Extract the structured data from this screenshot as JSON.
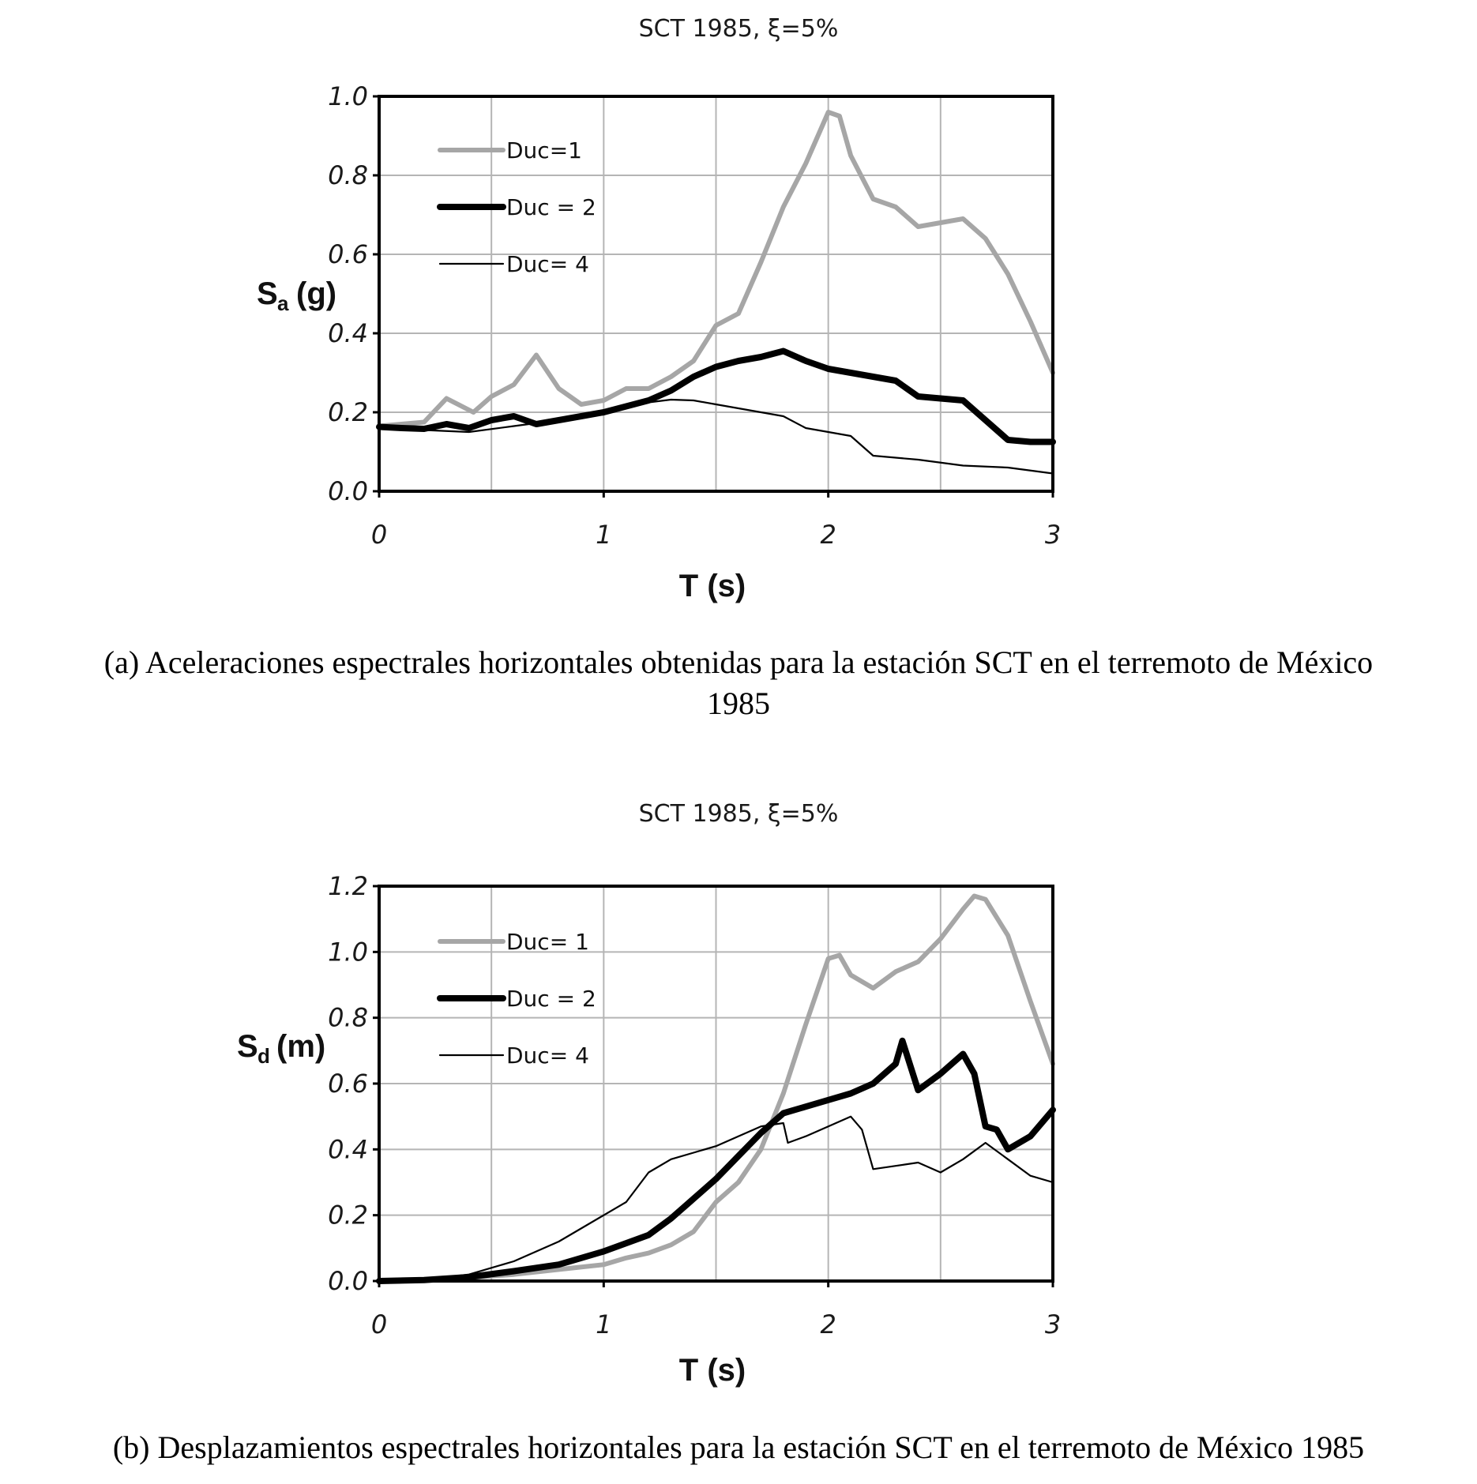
{
  "chart_data": [
    {
      "type": "line",
      "title": "SCT 1985, ξ=5%",
      "ylabel_main": "S",
      "ylabel_sub": "a",
      "ylabel_unit": "(g)",
      "xlabel": "T (s)",
      "xlim": [
        0,
        3
      ],
      "ylim": [
        0,
        1.0
      ],
      "xticks": [
        "0",
        "1",
        "2",
        "3"
      ],
      "yticks": [
        "0.0",
        "0.2",
        "0.4",
        "0.6",
        "0.8",
        "1.0"
      ],
      "grid": true,
      "legend_position": "top-left",
      "caption_line1": "(a) Aceleraciones espectrales horizontales obtenidas para la estación SCT en el terremoto de México",
      "caption_line2": "1985",
      "series": [
        {
          "name": "Duc=1",
          "color": "#a6a6a6",
          "style": "thick",
          "points": [
            [
              0,
              0.165
            ],
            [
              0.1,
              0.17
            ],
            [
              0.2,
              0.175
            ],
            [
              0.3,
              0.235
            ],
            [
              0.42,
              0.2
            ],
            [
              0.5,
              0.24
            ],
            [
              0.6,
              0.27
            ],
            [
              0.7,
              0.345
            ],
            [
              0.8,
              0.26
            ],
            [
              0.9,
              0.22
            ],
            [
              1.0,
              0.23
            ],
            [
              1.1,
              0.26
            ],
            [
              1.2,
              0.26
            ],
            [
              1.3,
              0.29
            ],
            [
              1.4,
              0.33
            ],
            [
              1.5,
              0.42
            ],
            [
              1.6,
              0.45
            ],
            [
              1.7,
              0.58
            ],
            [
              1.8,
              0.72
            ],
            [
              1.9,
              0.83
            ],
            [
              2.0,
              0.96
            ],
            [
              2.05,
              0.95
            ],
            [
              2.1,
              0.85
            ],
            [
              2.2,
              0.74
            ],
            [
              2.3,
              0.72
            ],
            [
              2.4,
              0.67
            ],
            [
              2.5,
              0.68
            ],
            [
              2.6,
              0.69
            ],
            [
              2.7,
              0.64
            ],
            [
              2.8,
              0.55
            ],
            [
              2.9,
              0.43
            ],
            [
              3.0,
              0.3
            ]
          ]
        },
        {
          "name": "Duc = 2",
          "color": "#000000",
          "style": "bold",
          "points": [
            [
              0,
              0.163
            ],
            [
              0.1,
              0.16
            ],
            [
              0.2,
              0.158
            ],
            [
              0.3,
              0.17
            ],
            [
              0.4,
              0.16
            ],
            [
              0.5,
              0.18
            ],
            [
              0.6,
              0.19
            ],
            [
              0.7,
              0.17
            ],
            [
              0.8,
              0.18
            ],
            [
              0.9,
              0.19
            ],
            [
              1.0,
              0.2
            ],
            [
              1.1,
              0.215
            ],
            [
              1.2,
              0.23
            ],
            [
              1.3,
              0.255
            ],
            [
              1.4,
              0.29
            ],
            [
              1.5,
              0.315
            ],
            [
              1.6,
              0.33
            ],
            [
              1.7,
              0.34
            ],
            [
              1.8,
              0.355
            ],
            [
              1.9,
              0.33
            ],
            [
              2.0,
              0.31
            ],
            [
              2.1,
              0.3
            ],
            [
              2.2,
              0.29
            ],
            [
              2.3,
              0.28
            ],
            [
              2.4,
              0.24
            ],
            [
              2.5,
              0.235
            ],
            [
              2.6,
              0.23
            ],
            [
              2.7,
              0.18
            ],
            [
              2.8,
              0.13
            ],
            [
              2.9,
              0.125
            ],
            [
              3.0,
              0.125
            ]
          ]
        },
        {
          "name": "Duc= 4",
          "color": "#000000",
          "style": "thin",
          "points": [
            [
              0,
              0.16
            ],
            [
              0.2,
              0.155
            ],
            [
              0.4,
              0.15
            ],
            [
              0.6,
              0.165
            ],
            [
              0.8,
              0.18
            ],
            [
              1.0,
              0.2
            ],
            [
              1.2,
              0.225
            ],
            [
              1.3,
              0.232
            ],
            [
              1.4,
              0.23
            ],
            [
              1.5,
              0.22
            ],
            [
              1.6,
              0.21
            ],
            [
              1.7,
              0.2
            ],
            [
              1.8,
              0.19
            ],
            [
              1.9,
              0.16
            ],
            [
              2.0,
              0.15
            ],
            [
              2.1,
              0.14
            ],
            [
              2.2,
              0.09
            ],
            [
              2.4,
              0.08
            ],
            [
              2.6,
              0.065
            ],
            [
              2.8,
              0.06
            ],
            [
              3.0,
              0.045
            ]
          ]
        }
      ]
    },
    {
      "type": "line",
      "title": "SCT 1985, ξ=5%",
      "ylabel_main": "S",
      "ylabel_sub": "d",
      "ylabel_unit": "(m)",
      "xlabel": "T (s)",
      "xlim": [
        0,
        3
      ],
      "ylim": [
        0,
        1.2
      ],
      "xticks": [
        "0",
        "1",
        "2",
        "3"
      ],
      "yticks": [
        "0.0",
        "0.2",
        "0.4",
        "0.6",
        "0.8",
        "1.0",
        "1.2"
      ],
      "grid": true,
      "legend_position": "top-left",
      "caption_line1": "(b) Desplazamientos espectrales horizontales para la estación SCT en el terremoto de México 1985",
      "caption_line2": "",
      "series": [
        {
          "name": "Duc= 1",
          "color": "#a6a6a6",
          "style": "thick",
          "points": [
            [
              0,
              0
            ],
            [
              0.2,
              0.003
            ],
            [
              0.4,
              0.01
            ],
            [
              0.6,
              0.02
            ],
            [
              0.8,
              0.035
            ],
            [
              1.0,
              0.05
            ],
            [
              1.1,
              0.07
            ],
            [
              1.2,
              0.085
            ],
            [
              1.3,
              0.11
            ],
            [
              1.4,
              0.15
            ],
            [
              1.5,
              0.24
            ],
            [
              1.6,
              0.3
            ],
            [
              1.7,
              0.4
            ],
            [
              1.8,
              0.57
            ],
            [
              1.9,
              0.78
            ],
            [
              2.0,
              0.98
            ],
            [
              2.05,
              0.99
            ],
            [
              2.1,
              0.93
            ],
            [
              2.2,
              0.89
            ],
            [
              2.3,
              0.94
            ],
            [
              2.4,
              0.97
            ],
            [
              2.5,
              1.04
            ],
            [
              2.6,
              1.13
            ],
            [
              2.65,
              1.17
            ],
            [
              2.7,
              1.16
            ],
            [
              2.8,
              1.05
            ],
            [
              2.9,
              0.85
            ],
            [
              3.0,
              0.66
            ]
          ]
        },
        {
          "name": "Duc = 2",
          "color": "#000000",
          "style": "bold",
          "points": [
            [
              0,
              0
            ],
            [
              0.2,
              0.003
            ],
            [
              0.4,
              0.012
            ],
            [
              0.6,
              0.03
            ],
            [
              0.8,
              0.05
            ],
            [
              1.0,
              0.09
            ],
            [
              1.2,
              0.14
            ],
            [
              1.3,
              0.19
            ],
            [
              1.4,
              0.25
            ],
            [
              1.5,
              0.31
            ],
            [
              1.6,
              0.38
            ],
            [
              1.7,
              0.45
            ],
            [
              1.8,
              0.51
            ],
            [
              1.9,
              0.53
            ],
            [
              2.0,
              0.55
            ],
            [
              2.1,
              0.57
            ],
            [
              2.2,
              0.6
            ],
            [
              2.3,
              0.66
            ],
            [
              2.33,
              0.73
            ],
            [
              2.4,
              0.58
            ],
            [
              2.5,
              0.63
            ],
            [
              2.6,
              0.69
            ],
            [
              2.65,
              0.63
            ],
            [
              2.7,
              0.47
            ],
            [
              2.75,
              0.46
            ],
            [
              2.8,
              0.4
            ],
            [
              2.9,
              0.44
            ],
            [
              3.0,
              0.52
            ]
          ]
        },
        {
          "name": "Duc= 4",
          "color": "#000000",
          "style": "thin",
          "points": [
            [
              0,
              0
            ],
            [
              0.2,
              0.004
            ],
            [
              0.4,
              0.02
            ],
            [
              0.6,
              0.06
            ],
            [
              0.8,
              0.12
            ],
            [
              1.0,
              0.2
            ],
            [
              1.1,
              0.24
            ],
            [
              1.2,
              0.33
            ],
            [
              1.3,
              0.37
            ],
            [
              1.4,
              0.39
            ],
            [
              1.5,
              0.41
            ],
            [
              1.6,
              0.44
            ],
            [
              1.7,
              0.47
            ],
            [
              1.8,
              0.48
            ],
            [
              1.82,
              0.42
            ],
            [
              1.9,
              0.44
            ],
            [
              2.0,
              0.47
            ],
            [
              2.1,
              0.5
            ],
            [
              2.15,
              0.46
            ],
            [
              2.2,
              0.34
            ],
            [
              2.3,
              0.35
            ],
            [
              2.4,
              0.36
            ],
            [
              2.5,
              0.33
            ],
            [
              2.6,
              0.37
            ],
            [
              2.7,
              0.42
            ],
            [
              2.8,
              0.37
            ],
            [
              2.9,
              0.32
            ],
            [
              3.0,
              0.3
            ]
          ]
        }
      ]
    }
  ]
}
